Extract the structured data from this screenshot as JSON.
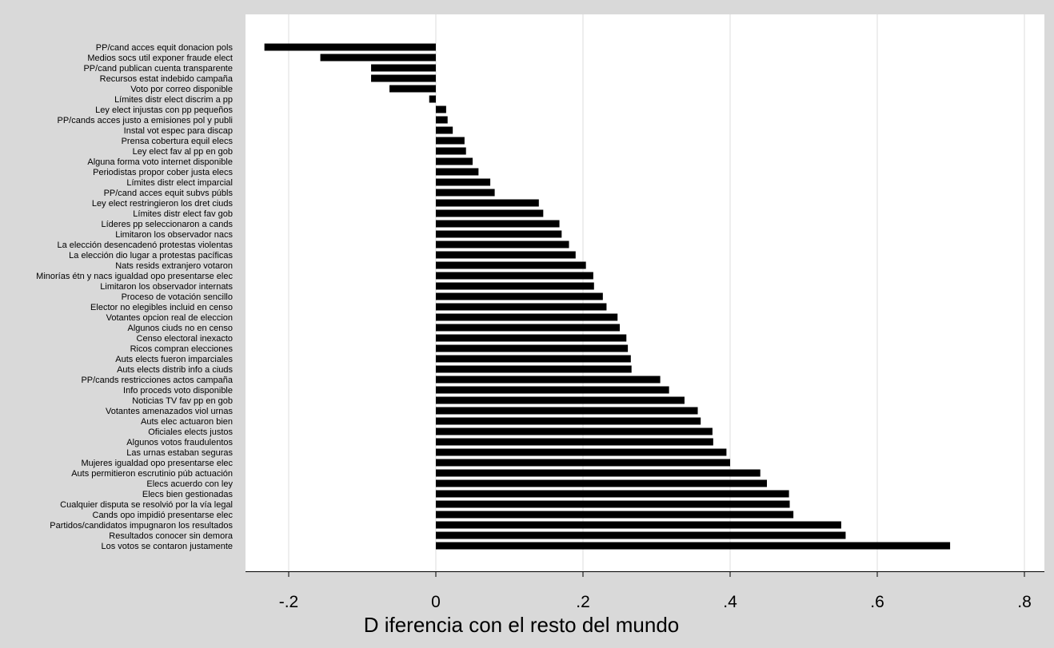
{
  "chart_data": {
    "type": "bar",
    "orientation": "horizontal",
    "xlabel": "D iferencia con el resto del mundo",
    "xlim": [
      -0.25,
      0.82
    ],
    "xticks": [
      -0.2,
      0,
      0.2,
      0.4,
      0.6,
      0.8
    ],
    "xtick_labels": [
      "-.2",
      "0",
      ".2",
      ".4",
      ".6",
      ".8"
    ],
    "grid": "vertical",
    "bar_color": "#000000",
    "plot_background": "#ffffff",
    "page_background": "#d9d9d9",
    "grid_color": "#dcdcdc",
    "categories": [
      "PP/cand acces equit donacion pols",
      "Medios socs util exponer fraude elect",
      "PP/cand publican cuenta transparente",
      "Recursos estat indebido campaña",
      "Voto por correo disponible",
      "Límites distr elect discrim a pp",
      "Ley elect injustas con pp pequeños",
      "PP/cands acces justo a emisiones pol y publi",
      "Instal  vot espec para discap",
      "Prensa cobertura equil elecs",
      "Ley elect fav al pp en gob",
      "Alguna forma voto internet disponible",
      "Periodistas propor cober justa elecs",
      "Límites distr elect imparcial",
      "PP/cand acces equit subvs públs",
      "Ley elect restringieron los dret ciuds",
      "Límites distr elect fav gob",
      "Líderes pp seleccionaron a cands",
      "Limitaron los observador nacs",
      "La elección desencadenó protestas violentas",
      "La elección dio lugar a protestas pacíficas",
      "Nats resids extranjero votaron",
      "Minorías étn y nacs igualdad opo presentarse elec",
      "Limitaron los observador internats",
      "Proceso de votación sencillo",
      "Elector no elegibles incluid en censo",
      "Votantes opcion real de eleccion",
      "Algunos ciuds no en censo",
      "Censo electoral inexacto",
      "Ricos compran elecciones",
      "Auts elects fueron imparciales",
      "Auts elects distrib info a ciuds",
      "PP/cands restricciones actos campaña",
      "Info proceds voto disponible",
      "Noticias TV fav pp en gob",
      "Votantes amenazados viol urnas",
      "Auts elec actuaron bien",
      "Oficiales elects justos",
      "Algunos votos fraudulentos",
      "Las urnas estaban seguras",
      "Mujeres igualdad opo presentarse elec",
      "Auts permitieron escrutinio púb actuación",
      "Elecs acuerdo con ley",
      "Elecs bien gestionadas",
      "Cualquier disputa se resolvió por la vía legal",
      "Cands opo impidió presentarse elec",
      "Partidos/candidatos impugnaron los resultados",
      "Resultados conocer sin demora",
      "Los votos se contaron justamente"
    ],
    "values": [
      -0.233,
      -0.157,
      -0.088,
      -0.088,
      -0.063,
      -0.009,
      0.014,
      0.016,
      0.023,
      0.039,
      0.041,
      0.05,
      0.058,
      0.074,
      0.08,
      0.14,
      0.146,
      0.168,
      0.171,
      0.181,
      0.19,
      0.204,
      0.214,
      0.215,
      0.227,
      0.232,
      0.247,
      0.25,
      0.259,
      0.261,
      0.265,
      0.266,
      0.305,
      0.317,
      0.338,
      0.356,
      0.36,
      0.376,
      0.377,
      0.395,
      0.4,
      0.441,
      0.45,
      0.48,
      0.481,
      0.486,
      0.551,
      0.557,
      0.699
    ]
  }
}
